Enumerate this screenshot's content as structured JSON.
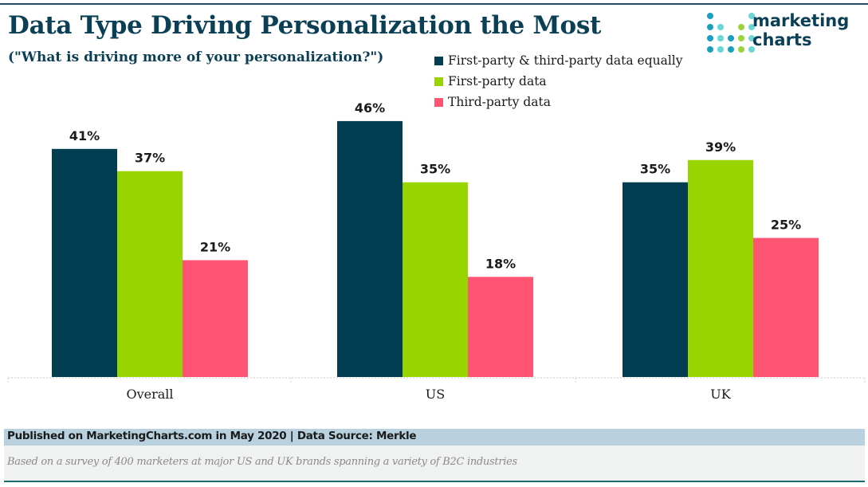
{
  "header": {
    "title": "Data Type Driving Personalization the Most",
    "subtitle": "(\"What is driving more of your personalization?\")"
  },
  "logo": {
    "line1": "marketing",
    "line2": "charts",
    "icon": "dot-grid-logo-icon"
  },
  "colors": {
    "both": "#023d52",
    "first": "#98d400",
    "third": "#ff5573",
    "title": "#0b3f55"
  },
  "chart_data": {
    "type": "bar",
    "title": "Data Type Driving Personalization the Most",
    "subtitle": "(\"What is driving more of your personalization?\")",
    "categories": [
      "Overall",
      "US",
      "UK"
    ],
    "series": [
      {
        "name": "First-party & third-party data equally",
        "color": "#023d52",
        "values": [
          41,
          46,
          35
        ]
      },
      {
        "name": "First-party data",
        "color": "#98d400",
        "values": [
          37,
          35,
          39
        ]
      },
      {
        "name": "Third-party data",
        "color": "#ff5573",
        "values": [
          21,
          18,
          25
        ]
      }
    ],
    "value_suffix": "%",
    "xlabel": "",
    "ylabel": "",
    "ylim": [
      0,
      46
    ],
    "grid": false,
    "legend_position": "top-right"
  },
  "footer": {
    "published": "Published on MarketingCharts.com in May 2020 | Data Source: Merkle",
    "note": "Based on a survey of 400 marketers at major US and UK brands spanning a variety of B2C industries"
  }
}
